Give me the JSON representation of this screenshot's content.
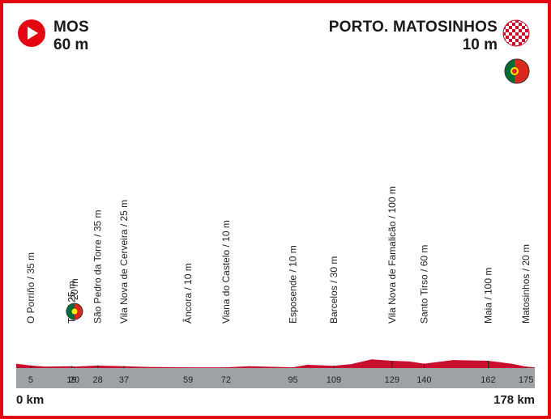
{
  "start": {
    "name": "MOS",
    "altitude": "60 m",
    "km": "0 km",
    "icon": "play-icon"
  },
  "finish": {
    "name": "PORTO. MATOSINHOS",
    "altitude": "10 m",
    "km": "178 km",
    "icon": "checkered-flag-icon"
  },
  "country_flag": "portugal-flag-icon",
  "colors": {
    "frame": "#e30613",
    "profile": "#c8102e",
    "base": "#9ea2a6"
  },
  "chart_data": {
    "type": "area",
    "x_unit": "km",
    "xlim": [
      0,
      178
    ],
    "profile": [
      [
        0,
        60
      ],
      [
        5,
        35
      ],
      [
        10,
        20
      ],
      [
        19,
        25
      ],
      [
        20,
        20
      ],
      [
        28,
        35
      ],
      [
        37,
        25
      ],
      [
        45,
        15
      ],
      [
        59,
        10
      ],
      [
        72,
        10
      ],
      [
        80,
        25
      ],
      [
        95,
        10
      ],
      [
        100,
        45
      ],
      [
        109,
        30
      ],
      [
        115,
        55
      ],
      [
        122,
        120
      ],
      [
        129,
        100
      ],
      [
        135,
        90
      ],
      [
        140,
        60
      ],
      [
        150,
        110
      ],
      [
        162,
        100
      ],
      [
        170,
        60
      ],
      [
        175,
        20
      ],
      [
        178,
        10
      ]
    ],
    "places": [
      {
        "km": "5",
        "label": "O Porriño / 35 m"
      },
      {
        "km": "19",
        "label": "Tui / 25 m"
      },
      {
        "km": "20",
        "label": "20 m",
        "flag": "portugal-flag-icon"
      },
      {
        "km": "28",
        "label": "São Pedro da Torre / 35 m"
      },
      {
        "km": "37",
        "label": "Vila Nova de Cerveira / 25 m"
      },
      {
        "km": "59",
        "label": "Âncora / 10 m"
      },
      {
        "km": "72",
        "label": "Viana do Castelo / 10 m"
      },
      {
        "km": "95",
        "label": "Esposende / 10 m"
      },
      {
        "km": "109",
        "label": "Barcelos / 30 m"
      },
      {
        "km": "129",
        "label": "Vila Nova de Famalicão / 100 m"
      },
      {
        "km": "140",
        "label": "Santo Tirso / 60 m"
      },
      {
        "km": "162",
        "label": "Maia / 100 m"
      },
      {
        "km": "175",
        "label": "Matosinhos / 20 m"
      }
    ]
  }
}
